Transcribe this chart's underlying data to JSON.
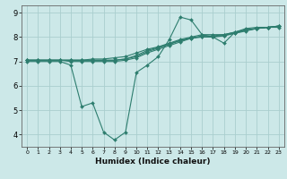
{
  "xlabel": "Humidex (Indice chaleur)",
  "background_color": "#cce8e8",
  "grid_color": "#aacece",
  "line_color": "#2d7d6e",
  "xlim": [
    -0.5,
    23.5
  ],
  "ylim": [
    3.5,
    9.3
  ],
  "yticks": [
    4,
    5,
    6,
    7,
    8,
    9
  ],
  "xticks": [
    0,
    1,
    2,
    3,
    4,
    5,
    6,
    7,
    8,
    9,
    10,
    11,
    12,
    13,
    14,
    15,
    16,
    17,
    18,
    19,
    20,
    21,
    22,
    23
  ],
  "lines": [
    {
      "x": [
        0,
        1,
        2,
        3,
        4,
        5,
        6,
        7,
        8,
        9,
        10,
        11,
        12,
        13,
        14,
        15,
        16,
        17,
        18,
        19,
        20,
        21,
        22,
        23
      ],
      "y": [
        7.0,
        7.0,
        7.0,
        7.0,
        6.85,
        5.15,
        5.3,
        4.1,
        3.78,
        4.1,
        6.55,
        6.85,
        7.2,
        7.9,
        8.82,
        8.7,
        8.1,
        8.0,
        7.75,
        8.2,
        8.35,
        8.4,
        8.4,
        8.4
      ]
    },
    {
      "x": [
        0,
        1,
        2,
        3,
        4,
        5,
        6,
        7,
        8,
        9,
        10,
        11,
        12,
        13,
        14,
        15,
        16,
        17,
        18,
        19,
        20,
        21,
        22,
        23
      ],
      "y": [
        7.05,
        7.05,
        7.05,
        7.05,
        7.05,
        7.05,
        7.05,
        7.05,
        7.05,
        7.1,
        7.2,
        7.4,
        7.55,
        7.7,
        7.85,
        7.95,
        8.0,
        8.0,
        8.05,
        8.15,
        8.25,
        8.35,
        8.4,
        8.45
      ]
    },
    {
      "x": [
        0,
        1,
        2,
        3,
        4,
        5,
        6,
        7,
        8,
        9,
        10,
        11,
        12,
        13,
        14,
        15,
        16,
        17,
        18,
        19,
        20,
        21,
        22,
        23
      ],
      "y": [
        7.05,
        7.05,
        7.05,
        7.05,
        7.05,
        7.05,
        7.1,
        7.1,
        7.15,
        7.2,
        7.35,
        7.5,
        7.6,
        7.75,
        7.9,
        8.0,
        8.1,
        8.1,
        8.1,
        8.2,
        8.3,
        8.35,
        8.4,
        8.45
      ]
    },
    {
      "x": [
        0,
        1,
        2,
        3,
        4,
        5,
        6,
        7,
        8,
        9,
        10,
        11,
        12,
        13,
        14,
        15,
        16,
        17,
        18,
        19,
        20,
        21,
        22,
        23
      ],
      "y": [
        7.05,
        7.05,
        7.05,
        7.05,
        7.0,
        7.0,
        7.0,
        7.0,
        7.0,
        7.05,
        7.15,
        7.35,
        7.5,
        7.65,
        7.8,
        7.95,
        8.05,
        8.05,
        8.1,
        8.2,
        8.3,
        8.35,
        8.4,
        8.45
      ]
    },
    {
      "x": [
        0,
        1,
        2,
        3,
        4,
        5,
        6,
        7,
        8,
        9,
        10,
        11,
        12,
        13,
        14,
        15,
        16,
        17,
        18,
        19,
        20,
        21,
        22,
        23
      ],
      "y": [
        7.05,
        7.05,
        7.05,
        7.05,
        7.05,
        7.05,
        7.05,
        7.05,
        7.05,
        7.1,
        7.25,
        7.45,
        7.58,
        7.72,
        7.87,
        7.97,
        8.02,
        8.02,
        8.07,
        8.17,
        8.27,
        8.35,
        8.4,
        8.45
      ]
    }
  ]
}
